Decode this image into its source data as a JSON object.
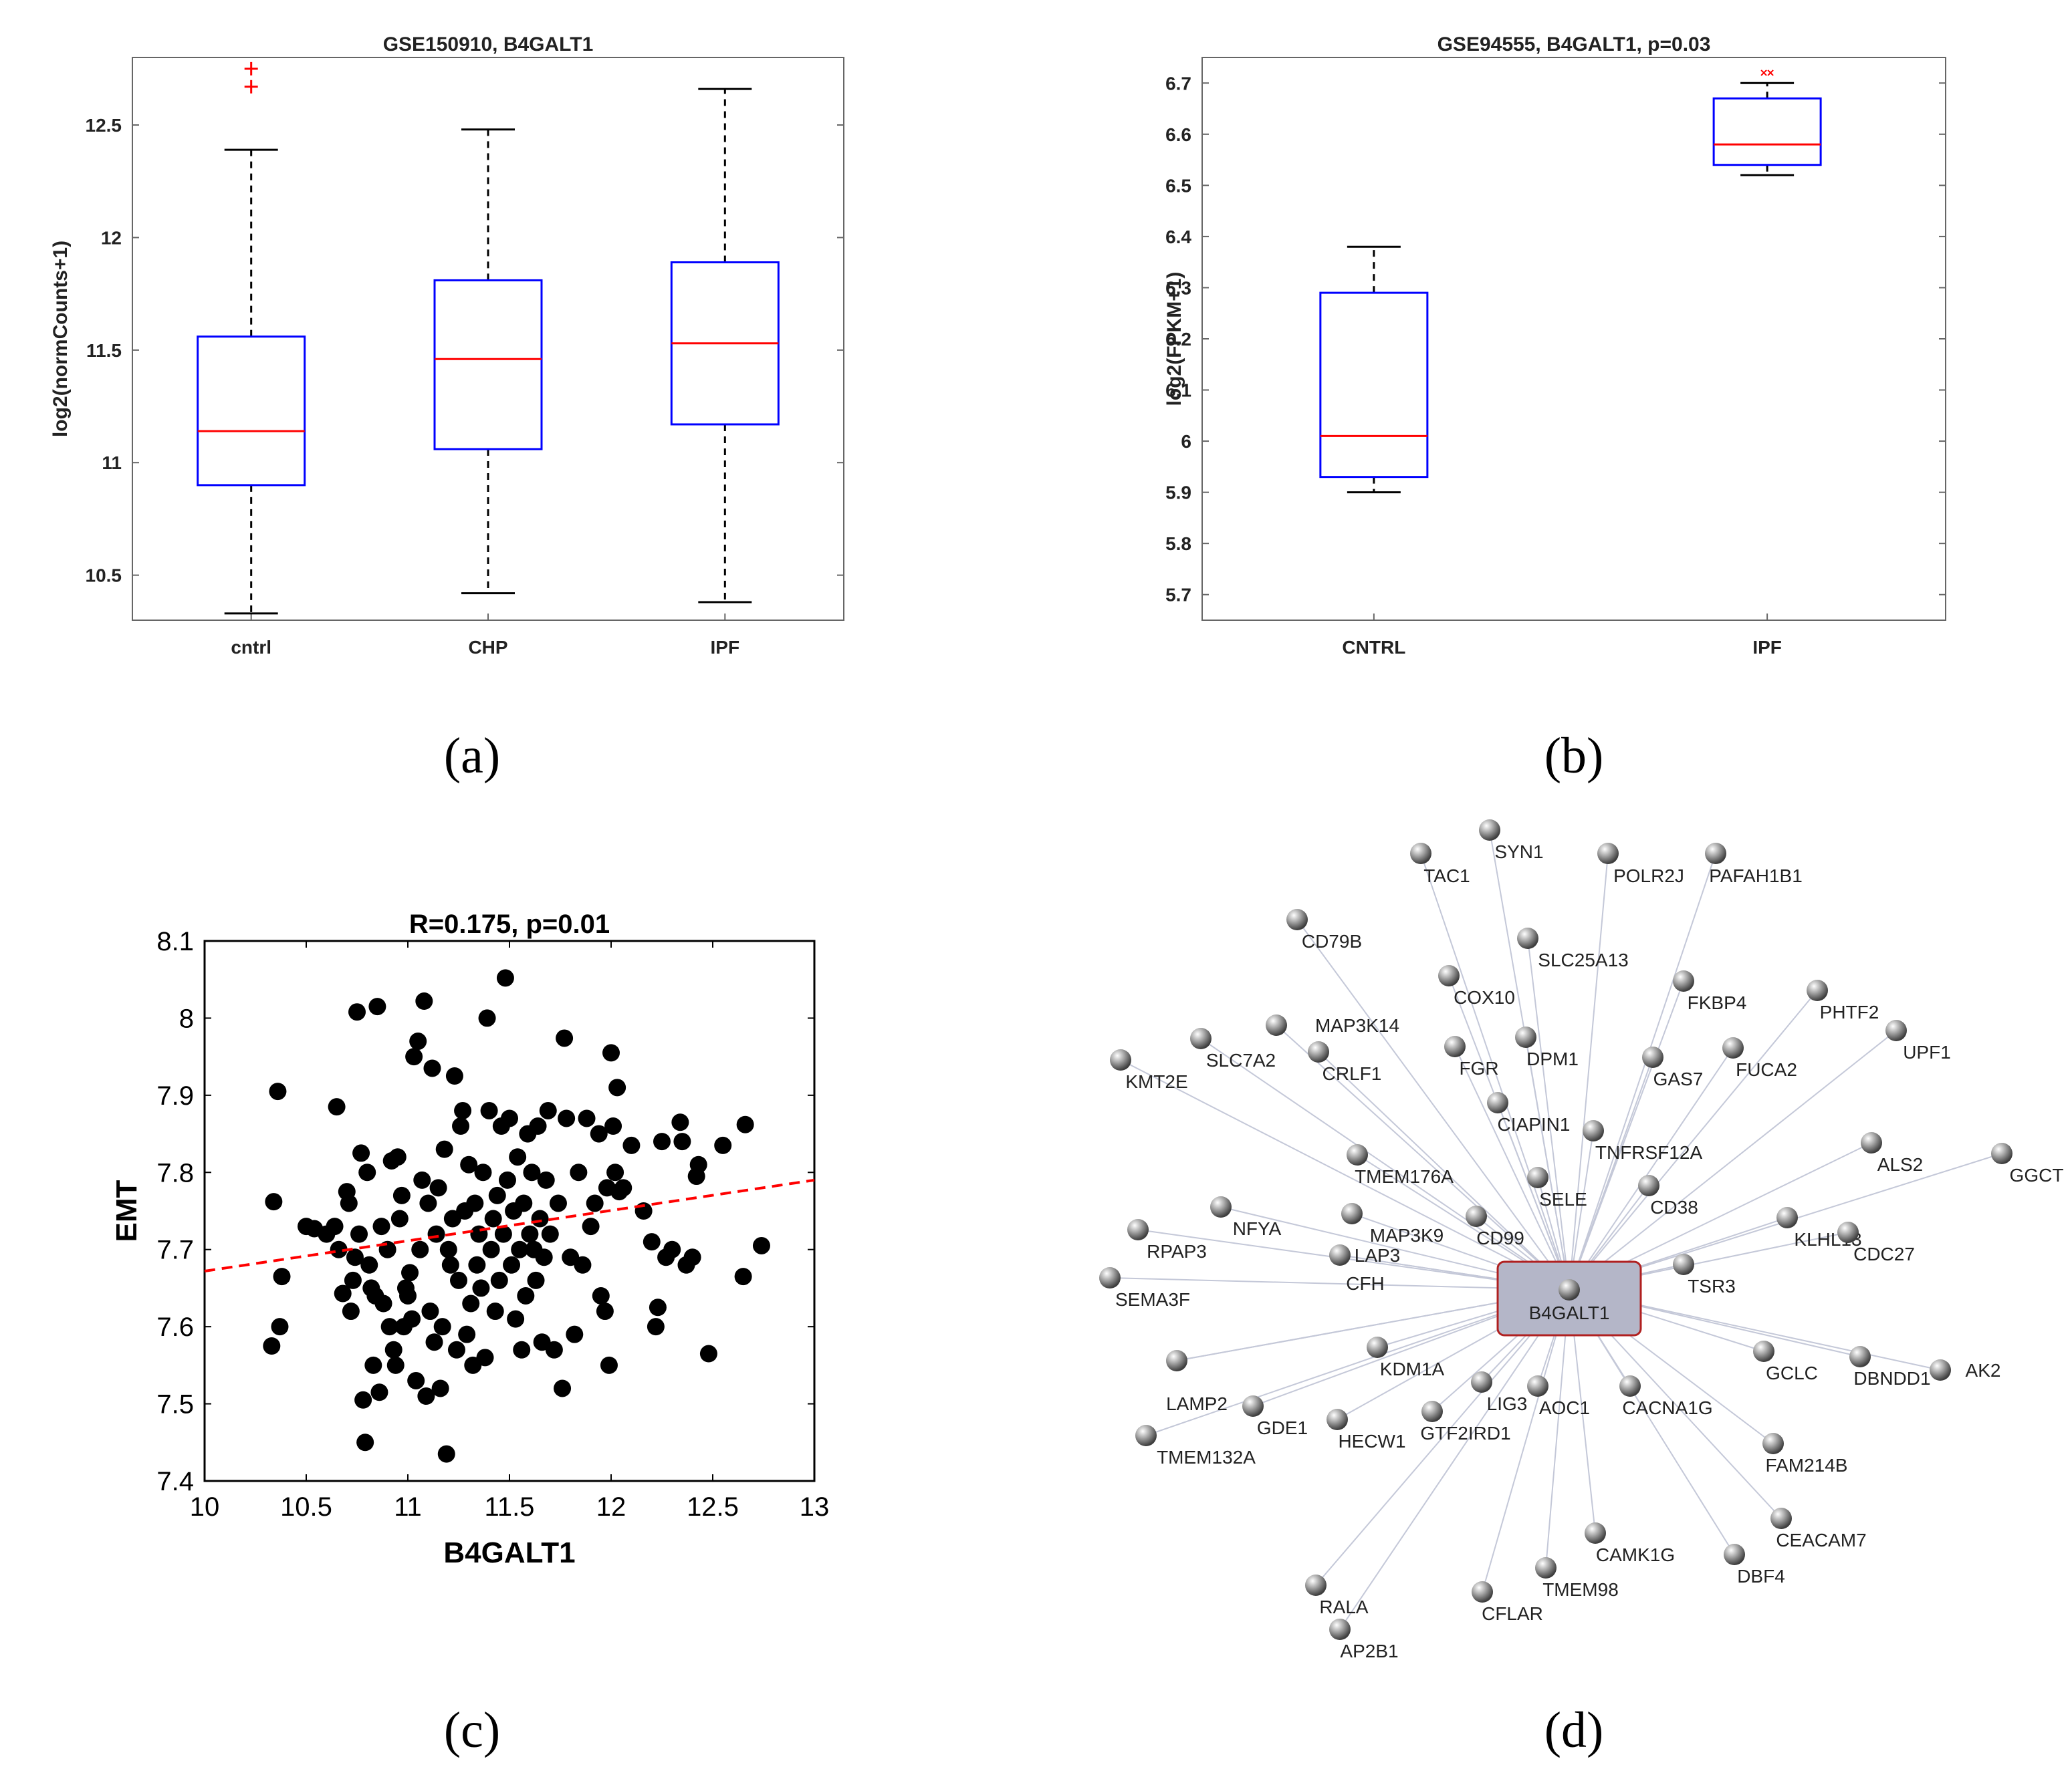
{
  "panel_labels": [
    "(a)",
    "(b)",
    "(c)",
    "(d)"
  ],
  "chart_data": [
    {
      "type": "box",
      "title": "GSE150910, B4GALT1",
      "xlabel": "",
      "ylabel": "log2(normCounts+1)",
      "ylim": [
        10.3,
        12.8
      ],
      "yticks": [
        10.5,
        11,
        11.5,
        12,
        12.5
      ],
      "categories": [
        "cntrl",
        "CHP",
        "IPF"
      ],
      "boxes": [
        {
          "whisker_low": 10.33,
          "q1": 10.9,
          "median": 11.14,
          "q3": 11.56,
          "whisker_high": 12.39,
          "outliers": [
            12.67,
            12.75
          ]
        },
        {
          "whisker_low": 10.42,
          "q1": 11.06,
          "median": 11.46,
          "q3": 11.81,
          "whisker_high": 12.48,
          "outliers": []
        },
        {
          "whisker_low": 10.38,
          "q1": 11.17,
          "median": 11.53,
          "q3": 11.89,
          "whisker_high": 12.66,
          "outliers": []
        }
      ],
      "colors": {
        "box": "#0000ff",
        "median": "#ff0000",
        "outlier": "#ff0000",
        "whisker": "#000000"
      }
    },
    {
      "type": "box",
      "title": "GSE94555, B4GALT1, p=0.03",
      "xlabel": "",
      "ylabel": "log2(FPKM+1)",
      "ylim": [
        5.65,
        6.75
      ],
      "yticks": [
        5.7,
        5.8,
        5.9,
        6,
        6.1,
        6.2,
        6.3,
        6.4,
        6.5,
        6.6,
        6.7
      ],
      "categories": [
        "CNTRL",
        "IPF"
      ],
      "boxes": [
        {
          "whisker_low": 5.9,
          "q1": 5.93,
          "median": 6.01,
          "q3": 6.29,
          "whisker_high": 6.38,
          "outliers": []
        },
        {
          "whisker_low": 6.52,
          "q1": 6.54,
          "median": 6.58,
          "q3": 6.67,
          "whisker_high": 6.7,
          "outliers": [
            6.72
          ]
        }
      ],
      "colors": {
        "box": "#0000ff",
        "median": "#ff0000",
        "outlier": "#ff0000",
        "whisker": "#000000"
      }
    },
    {
      "type": "scatter",
      "title": "R=0.175, p=0.01",
      "xlabel": "B4GALT1",
      "ylabel": "EMT",
      "xlim": [
        10,
        13
      ],
      "ylim": [
        7.4,
        8.1
      ],
      "xticks": [
        10,
        10.5,
        11,
        11.5,
        12,
        12.5,
        13
      ],
      "yticks": [
        7.4,
        7.5,
        7.6,
        7.7,
        7.8,
        7.9,
        8,
        8.1
      ],
      "trend_line": {
        "x": [
          10,
          13
        ],
        "y": [
          7.672,
          7.79
        ]
      },
      "colors": {
        "points": "#000000",
        "trend": "#ff0000"
      },
      "points": [
        [
          10.33,
          7.575
        ],
        [
          10.34,
          7.762
        ],
        [
          10.36,
          7.905
        ],
        [
          10.37,
          7.6
        ],
        [
          10.38,
          7.665
        ],
        [
          10.5,
          7.73
        ],
        [
          10.54,
          7.727
        ],
        [
          10.6,
          7.72
        ],
        [
          10.64,
          7.73
        ],
        [
          10.65,
          7.885
        ],
        [
          10.66,
          7.7
        ],
        [
          10.68,
          7.643
        ],
        [
          10.7,
          7.775
        ],
        [
          10.71,
          7.76
        ],
        [
          10.72,
          7.62
        ],
        [
          10.73,
          7.66
        ],
        [
          10.74,
          7.69
        ],
        [
          10.75,
          8.008
        ],
        [
          10.76,
          7.72
        ],
        [
          10.77,
          7.825
        ],
        [
          10.78,
          7.505
        ],
        [
          10.79,
          7.45
        ],
        [
          10.8,
          7.8
        ],
        [
          10.81,
          7.68
        ],
        [
          10.82,
          7.65
        ],
        [
          10.83,
          7.55
        ],
        [
          10.84,
          7.64
        ],
        [
          10.85,
          8.015
        ],
        [
          10.86,
          7.515
        ],
        [
          10.87,
          7.73
        ],
        [
          10.88,
          7.63
        ],
        [
          10.9,
          7.7
        ],
        [
          10.91,
          7.6
        ],
        [
          10.92,
          7.815
        ],
        [
          10.93,
          7.57
        ],
        [
          10.94,
          7.55
        ],
        [
          10.95,
          7.82
        ],
        [
          10.96,
          7.74
        ],
        [
          10.97,
          7.77
        ],
        [
          10.98,
          7.6
        ],
        [
          10.99,
          7.65
        ],
        [
          11.0,
          7.64
        ],
        [
          11.01,
          7.67
        ],
        [
          11.02,
          7.61
        ],
        [
          11.03,
          7.95
        ],
        [
          11.04,
          7.53
        ],
        [
          11.05,
          7.97
        ],
        [
          11.06,
          7.7
        ],
        [
          11.07,
          7.79
        ],
        [
          11.08,
          8.022
        ],
        [
          11.09,
          7.51
        ],
        [
          11.1,
          7.76
        ],
        [
          11.11,
          7.62
        ],
        [
          11.12,
          7.935
        ],
        [
          11.13,
          7.58
        ],
        [
          11.14,
          7.72
        ],
        [
          11.15,
          7.78
        ],
        [
          11.16,
          7.52
        ],
        [
          11.17,
          7.6
        ],
        [
          11.18,
          7.83
        ],
        [
          11.19,
          7.435
        ],
        [
          11.2,
          7.7
        ],
        [
          11.21,
          7.68
        ],
        [
          11.22,
          7.74
        ],
        [
          11.23,
          7.925
        ],
        [
          11.24,
          7.57
        ],
        [
          11.25,
          7.66
        ],
        [
          11.26,
          7.86
        ],
        [
          11.27,
          7.88
        ],
        [
          11.28,
          7.75
        ],
        [
          11.29,
          7.59
        ],
        [
          11.3,
          7.81
        ],
        [
          11.31,
          7.63
        ],
        [
          11.32,
          7.55
        ],
        [
          11.33,
          7.76
        ],
        [
          11.34,
          7.68
        ],
        [
          11.35,
          7.72
        ],
        [
          11.36,
          7.65
        ],
        [
          11.37,
          7.8
        ],
        [
          11.38,
          7.56
        ],
        [
          11.39,
          8.0
        ],
        [
          11.4,
          7.88
        ],
        [
          11.41,
          7.7
        ],
        [
          11.42,
          7.74
        ],
        [
          11.43,
          7.62
        ],
        [
          11.44,
          7.77
        ],
        [
          11.45,
          7.66
        ],
        [
          11.46,
          7.86
        ],
        [
          11.47,
          7.72
        ],
        [
          11.48,
          8.052
        ],
        [
          11.49,
          7.79
        ],
        [
          11.5,
          7.87
        ],
        [
          11.51,
          7.68
        ],
        [
          11.52,
          7.75
        ],
        [
          11.53,
          7.61
        ],
        [
          11.54,
          7.82
        ],
        [
          11.55,
          7.7
        ],
        [
          11.56,
          7.57
        ],
        [
          11.57,
          7.76
        ],
        [
          11.58,
          7.64
        ],
        [
          11.59,
          7.85
        ],
        [
          11.6,
          7.72
        ],
        [
          11.61,
          7.8
        ],
        [
          11.62,
          7.7
        ],
        [
          11.63,
          7.66
        ],
        [
          11.64,
          7.86
        ],
        [
          11.65,
          7.74
        ],
        [
          11.66,
          7.58
        ],
        [
          11.67,
          7.69
        ],
        [
          11.68,
          7.79
        ],
        [
          11.69,
          7.88
        ],
        [
          11.7,
          7.72
        ],
        [
          11.72,
          7.57
        ],
        [
          11.74,
          7.76
        ],
        [
          11.76,
          7.52
        ],
        [
          11.77,
          7.974
        ],
        [
          11.78,
          7.87
        ],
        [
          11.8,
          7.69
        ],
        [
          11.82,
          7.59
        ],
        [
          11.84,
          7.8
        ],
        [
          11.86,
          7.68
        ],
        [
          11.88,
          7.87
        ],
        [
          11.9,
          7.73
        ],
        [
          11.92,
          7.76
        ],
        [
          11.94,
          7.85
        ],
        [
          11.95,
          7.64
        ],
        [
          11.97,
          7.62
        ],
        [
          11.98,
          7.78
        ],
        [
          11.99,
          7.55
        ],
        [
          12.0,
          7.955
        ],
        [
          12.01,
          7.86
        ],
        [
          12.02,
          7.8
        ],
        [
          12.03,
          7.91
        ],
        [
          12.04,
          7.775
        ],
        [
          12.06,
          7.78
        ],
        [
          12.1,
          7.835
        ],
        [
          12.16,
          7.75
        ],
        [
          12.2,
          7.71
        ],
        [
          12.22,
          7.6
        ],
        [
          12.23,
          7.625
        ],
        [
          12.25,
          7.84
        ],
        [
          12.27,
          7.69
        ],
        [
          12.3,
          7.7
        ],
        [
          12.34,
          7.865
        ],
        [
          12.35,
          7.84
        ],
        [
          12.37,
          7.68
        ],
        [
          12.4,
          7.69
        ],
        [
          12.42,
          7.795
        ],
        [
          12.43,
          7.81
        ],
        [
          12.48,
          7.565
        ],
        [
          12.55,
          7.835
        ],
        [
          12.65,
          7.665
        ],
        [
          12.66,
          7.862
        ],
        [
          12.74,
          7.705
        ]
      ]
    }
  ],
  "network": {
    "center": "B4GALT1",
    "nodes": [
      "SYN1",
      "TAC1",
      "POLR2J",
      "PAFAH1B1",
      "CD79B",
      "SLC25A13",
      "COX10",
      "FKBP4",
      "PHTF2",
      "MAP3K14",
      "SLC7A2",
      "KMT2E",
      "CRLF1",
      "FGR",
      "DPM1",
      "GAS7",
      "FUCA2",
      "UPF1",
      "CIAPIN1",
      "TNFRSF12A",
      "TMEM176A",
      "ALS2",
      "GGCT",
      "SELE",
      "CD38",
      "NFYA",
      "MAP3K9",
      "CD99",
      "RPAP3",
      "LAP3",
      "CFH",
      "KLHL13",
      "CDC27",
      "SEMA3F",
      "TSR3",
      "KDM1A",
      "GCLC",
      "DBNDD1",
      "AK2",
      "LAMP2",
      "LIG3",
      "AOC1",
      "CACNA1G",
      "GDE1",
      "HECW1",
      "GTF2IRD1",
      "TMEM132A",
      "FAM214B",
      "CAMK1G",
      "CEACAM7",
      "TMEM98",
      "DBF4",
      "RALA",
      "CFLAR",
      "AP2B1"
    ],
    "colors": {
      "edge": "#c4c8d8",
      "center_fill": "#b4b6c8",
      "center_border": "#b02020",
      "node": "#8a8a8a"
    }
  }
}
